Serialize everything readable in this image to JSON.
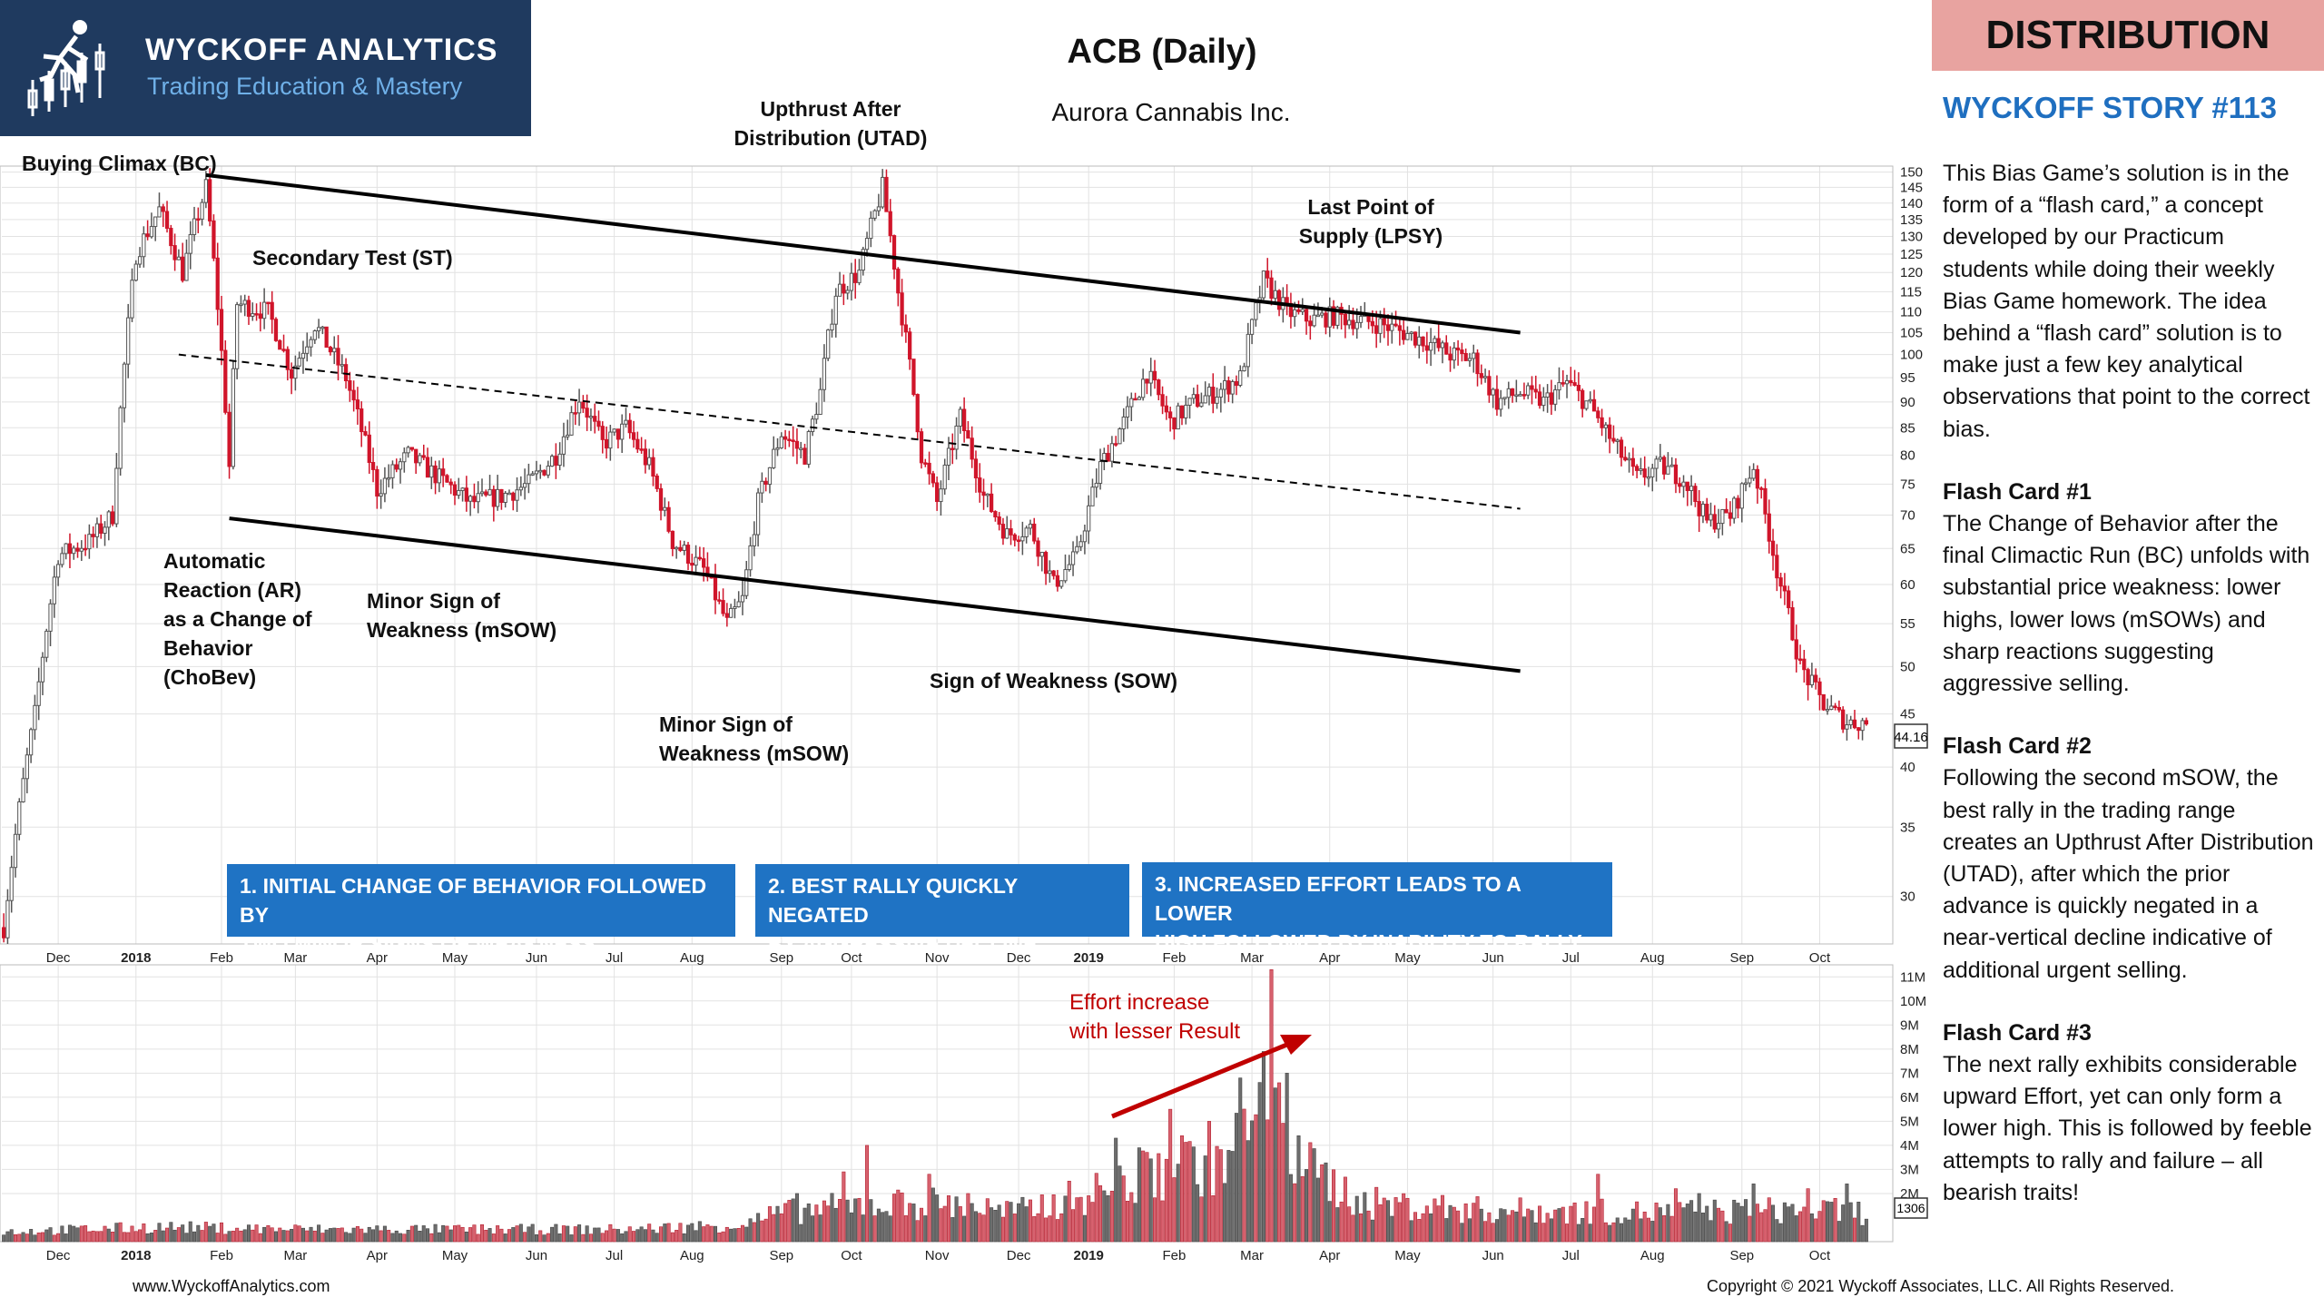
{
  "header": {
    "logo_name": "WYCKOFF ANALYTICS",
    "logo_tagline": "Trading Education & Mastery",
    "title": "ACB (Daily)",
    "subtitle": "Aurora Cannabis Inc.",
    "badge": "DISTRIBUTION",
    "story": "WYCKOFF STORY #113"
  },
  "sidebar": {
    "intro": "This Bias Game’s solution is in the form of a “flash card,” a concept developed by our Practicum students while doing their weekly Bias Game homework.  The idea behind a “flash card” solution is to make just a few key analytical observations that point to the correct bias.",
    "cards": [
      {
        "title": "Flash Card #1",
        "text": "The Change of Behavior after the final Climactic Run (BC) unfolds with substantial price weakness: lower highs, lower lows (mSOWs) and sharp reactions suggesting aggressive selling."
      },
      {
        "title": "Flash Card #2",
        "text": "Following the second mSOW, the best rally in the trading range creates an Upthrust After Distribution (UTAD), after which the prior advance is quickly negated in a near-vertical decline indicative of additional urgent selling."
      },
      {
        "title": "Flash Card #3",
        "text": "The next rally exhibits considerable upward Effort, yet can only form a lower high. This is followed by feeble attempts to rally and failure – all bearish traits!"
      }
    ]
  },
  "annotations": {
    "bc": "Buying Climax (BC)",
    "st": "Secondary Test (ST)",
    "ar": [
      "Automatic",
      "Reaction (AR)",
      "as a Change of",
      "Behavior",
      "(ChoBev)"
    ],
    "msow1": [
      "Minor Sign of",
      "Weakness (mSOW)"
    ],
    "msow2": [
      "Minor Sign of",
      "Weakness (mSOW)"
    ],
    "utad": [
      "Upthrust After",
      "Distribution (UTAD)"
    ],
    "lpsy": [
      "Last Point of",
      "Supply (LPSY)"
    ],
    "sow": "Sign of Weakness (SOW)",
    "effort": [
      "Effort increase",
      "with lesser Result"
    ]
  },
  "phases": [
    {
      "line1": "1. INITIAL CHANGE OF BEHAVIOR FOLLOWED BY",
      "line2": "TWO MINOR SIGNS OF WEAKNESS"
    },
    {
      "line1": "2. BEST RALLY QUICKLY NEGATED",
      "line2": "BY AGGRESSIVE DECLINE"
    },
    {
      "line1": "3. INCREASED EFFORT LEADS TO A LOWER",
      "line2": "HIGH FOLLOWED BY INABILITY TO RALLY"
    }
  ],
  "footer": {
    "url": "www.WyckoffAnalytics.com",
    "copyright": "Copyright © 2021 Wyckoff Associates, LLC. All Rights Reserved."
  },
  "colors": {
    "up": "#555555",
    "down": "#d0152a",
    "logo_bg": "#1f3a5f",
    "badge_bg": "#e8a3a0",
    "phase_bg": "#1f73c4",
    "story": "#1f6fc0",
    "effort": "#c00000"
  },
  "chart_data": {
    "type": "candlestick",
    "price_axis": {
      "min": 27,
      "max": 152,
      "ticks": [
        30,
        35,
        40,
        45,
        50,
        55,
        60,
        65,
        70,
        75,
        80,
        85,
        90,
        95,
        100,
        105,
        110,
        115,
        120,
        125,
        130,
        135,
        140,
        145,
        150
      ],
      "last_price_label": "44.16",
      "scale": "log"
    },
    "volume_axis": {
      "min": 0,
      "max": 11.5,
      "ticks": [
        {
          "v": 2,
          "l": "2M"
        },
        {
          "v": 3,
          "l": "3M"
        },
        {
          "v": 4,
          "l": "4M"
        },
        {
          "v": 5,
          "l": "5M"
        },
        {
          "v": 6,
          "l": "6M"
        },
        {
          "v": 7,
          "l": "7M"
        },
        {
          "v": 8,
          "l": "8M"
        },
        {
          "v": 9,
          "l": "9M"
        },
        {
          "v": 10,
          "l": "10M"
        },
        {
          "v": 11,
          "l": "11M"
        }
      ],
      "last_volume_label": "1306"
    },
    "x_labels": [
      {
        "label": "Dec",
        "i": 14,
        "bold": false
      },
      {
        "label": "2018",
        "i": 34,
        "bold": true
      },
      {
        "label": "Feb",
        "i": 56,
        "bold": false
      },
      {
        "label": "Mar",
        "i": 75,
        "bold": false
      },
      {
        "label": "Apr",
        "i": 96,
        "bold": false
      },
      {
        "label": "May",
        "i": 116,
        "bold": false
      },
      {
        "label": "Jun",
        "i": 137,
        "bold": false
      },
      {
        "label": "Jul",
        "i": 157,
        "bold": false
      },
      {
        "label": "Aug",
        "i": 177,
        "bold": false
      },
      {
        "label": "Sep",
        "i": 200,
        "bold": false
      },
      {
        "label": "Oct",
        "i": 218,
        "bold": false
      },
      {
        "label": "Nov",
        "i": 240,
        "bold": false
      },
      {
        "label": "Dec",
        "i": 261,
        "bold": false
      },
      {
        "label": "2019",
        "i": 279,
        "bold": true
      },
      {
        "label": "Feb",
        "i": 301,
        "bold": false
      },
      {
        "label": "Mar",
        "i": 321,
        "bold": false
      },
      {
        "label": "Apr",
        "i": 341,
        "bold": false
      },
      {
        "label": "May",
        "i": 361,
        "bold": false
      },
      {
        "label": "Jun",
        "i": 383,
        "bold": false
      },
      {
        "label": "Jul",
        "i": 403,
        "bold": false
      },
      {
        "label": "Aug",
        "i": 424,
        "bold": false
      },
      {
        "label": "Sep",
        "i": 447,
        "bold": false
      },
      {
        "label": "Oct",
        "i": 467,
        "bold": false
      }
    ],
    "bars": 480,
    "price_path": [
      [
        0,
        28
      ],
      [
        8,
        45
      ],
      [
        14,
        64
      ],
      [
        22,
        66
      ],
      [
        28,
        70
      ],
      [
        34,
        125
      ],
      [
        40,
        138
      ],
      [
        46,
        120
      ],
      [
        52,
        145
      ],
      [
        58,
        78
      ],
      [
        60,
        112
      ],
      [
        68,
        110
      ],
      [
        74,
        96
      ],
      [
        80,
        107
      ],
      [
        88,
        95
      ],
      [
        96,
        74
      ],
      [
        104,
        80
      ],
      [
        112,
        76
      ],
      [
        120,
        72
      ],
      [
        128,
        73
      ],
      [
        135,
        75
      ],
      [
        142,
        80
      ],
      [
        148,
        91
      ],
      [
        154,
        82
      ],
      [
        160,
        85
      ],
      [
        166,
        78
      ],
      [
        172,
        66
      ],
      [
        180,
        62
      ],
      [
        186,
        55
      ],
      [
        190,
        58
      ],
      [
        194,
        72
      ],
      [
        200,
        84
      ],
      [
        206,
        80
      ],
      [
        210,
        92
      ],
      [
        214,
        115
      ],
      [
        220,
        120
      ],
      [
        226,
        145
      ],
      [
        230,
        115
      ],
      [
        236,
        80
      ],
      [
        240,
        72
      ],
      [
        246,
        87
      ],
      [
        252,
        73
      ],
      [
        258,
        67
      ],
      [
        264,
        68
      ],
      [
        270,
        60
      ],
      [
        276,
        64
      ],
      [
        282,
        78
      ],
      [
        288,
        86
      ],
      [
        294,
        96
      ],
      [
        300,
        86
      ],
      [
        306,
        90
      ],
      [
        312,
        92
      ],
      [
        318,
        95
      ],
      [
        324,
        118
      ],
      [
        330,
        110
      ],
      [
        336,
        108
      ],
      [
        342,
        109
      ],
      [
        348,
        108
      ],
      [
        354,
        107
      ],
      [
        360,
        105
      ],
      [
        366,
        103
      ],
      [
        372,
        100
      ],
      [
        378,
        99
      ],
      [
        384,
        90
      ],
      [
        390,
        92
      ],
      [
        396,
        90
      ],
      [
        402,
        94
      ],
      [
        408,
        89
      ],
      [
        414,
        82
      ],
      [
        420,
        76
      ],
      [
        426,
        78
      ],
      [
        432,
        76
      ],
      [
        438,
        69
      ],
      [
        444,
        70
      ],
      [
        450,
        78
      ],
      [
        456,
        62
      ],
      [
        462,
        50
      ],
      [
        468,
        46
      ],
      [
        474,
        44.16
      ]
    ],
    "vol_path": [
      [
        0,
        0.4
      ],
      [
        40,
        0.6
      ],
      [
        80,
        0.5
      ],
      [
        120,
        0.5
      ],
      [
        160,
        0.5
      ],
      [
        190,
        0.7
      ],
      [
        200,
        1.2
      ],
      [
        220,
        1.5
      ],
      [
        240,
        1.6
      ],
      [
        260,
        1.2
      ],
      [
        280,
        2.0
      ],
      [
        300,
        3.0
      ],
      [
        315,
        3.5
      ],
      [
        325,
        5.5
      ],
      [
        335,
        3.0
      ],
      [
        350,
        1.6
      ],
      [
        380,
        1.3
      ],
      [
        420,
        1.2
      ],
      [
        460,
        1.3
      ],
      [
        480,
        1.2
      ]
    ],
    "vol_spikes": [
      [
        204,
        2.0
      ],
      [
        216,
        2.9
      ],
      [
        222,
        4.0
      ],
      [
        238,
        2.8
      ],
      [
        248,
        2.0
      ],
      [
        286,
        4.3
      ],
      [
        292,
        3.9
      ],
      [
        300,
        5.5
      ],
      [
        303,
        4.4
      ],
      [
        310,
        5.0
      ],
      [
        318,
        6.8
      ],
      [
        320,
        4.2
      ],
      [
        324,
        7.9
      ],
      [
        326,
        11.3
      ],
      [
        328,
        6.6
      ],
      [
        330,
        7.0
      ],
      [
        333,
        4.4
      ],
      [
        410,
        2.8
      ],
      [
        430,
        2.2
      ],
      [
        436,
        2.0
      ],
      [
        450,
        2.4
      ],
      [
        464,
        2.2
      ],
      [
        474,
        2.4
      ]
    ],
    "trend_lines": [
      {
        "name": "supply-line",
        "from": [
          52,
          149
        ],
        "to": [
          390,
          105
        ]
      },
      {
        "name": "axis-line",
        "from": [
          45,
          100
        ],
        "to": [
          390,
          71
        ],
        "dashed": true
      },
      {
        "name": "demand-line",
        "from": [
          58,
          69.5
        ],
        "to": [
          390,
          49.5
        ]
      }
    ]
  }
}
